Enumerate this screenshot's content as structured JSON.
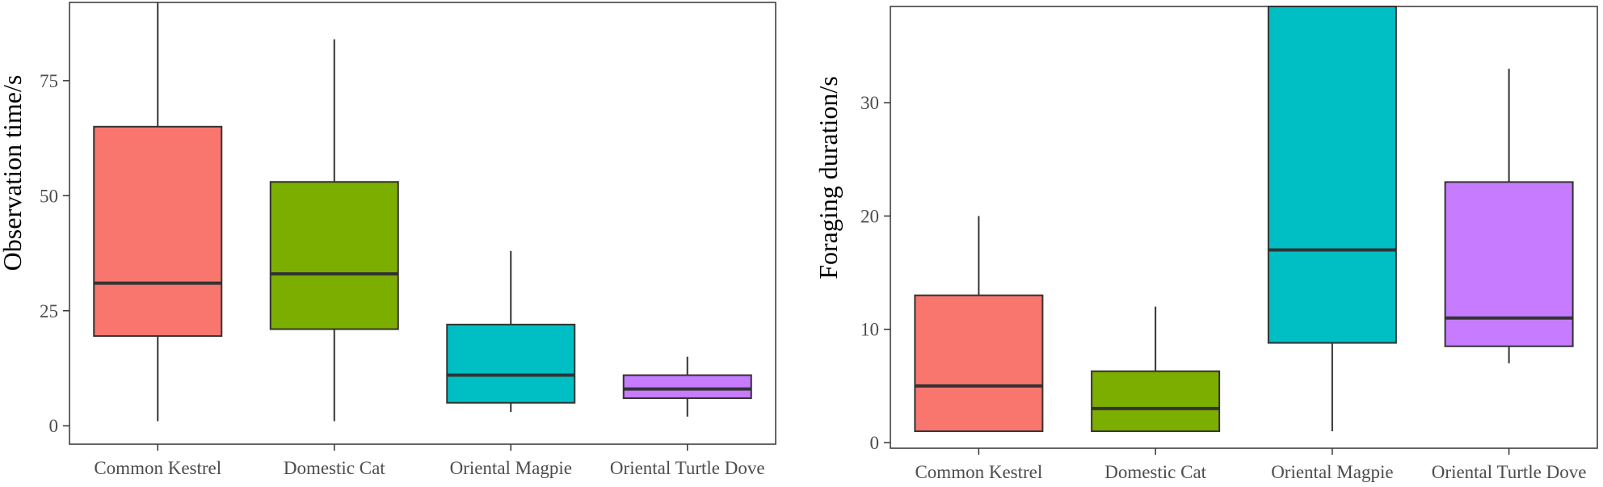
{
  "chart_data": [
    {
      "type": "boxplot",
      "title": "",
      "xlabel": "",
      "ylabel": "Observation time/s",
      "ylim": [
        -4,
        92
      ],
      "yticks": [
        0,
        25,
        50,
        75
      ],
      "grid": false,
      "legend": "none",
      "categories": [
        "Common Kestrel",
        "Domestic Cat",
        "Oriental Magpie",
        "Oriental Turtle Dove"
      ],
      "colors": [
        "#F8766D",
        "#7CAE00",
        "#00BFC4",
        "#C77CFF"
      ],
      "boxes": [
        {
          "whisker_low": 1,
          "q1": 19.5,
          "median": 31,
          "q3": 65,
          "whisker_high": 92
        },
        {
          "whisker_low": 1,
          "q1": 21,
          "median": 33,
          "q3": 53,
          "whisker_high": 84
        },
        {
          "whisker_low": 3,
          "q1": 5,
          "median": 11,
          "q3": 22,
          "whisker_high": 38
        },
        {
          "whisker_low": 2,
          "q1": 6,
          "median": 8,
          "q3": 11,
          "whisker_high": 15
        }
      ]
    },
    {
      "type": "boxplot",
      "title": "",
      "xlabel": "",
      "ylabel": "Foraging duration/s",
      "ylim": [
        -0.5,
        38.5
      ],
      "yticks": [
        0,
        10,
        20,
        30
      ],
      "grid": false,
      "legend": "none",
      "categories": [
        "Common Kestrel",
        "Domestic Cat",
        "Oriental Magpie",
        "Oriental Turtle Dove"
      ],
      "colors": [
        "#F8766D",
        "#7CAE00",
        "#00BFC4",
        "#C77CFF"
      ],
      "boxes": [
        {
          "whisker_low": 1,
          "q1": 1,
          "median": 5,
          "q3": 13,
          "whisker_high": 20
        },
        {
          "whisker_low": 1,
          "q1": 1,
          "median": 3,
          "q3": 6.3,
          "whisker_high": 12
        },
        {
          "whisker_low": 1,
          "q1": 8.8,
          "median": 17,
          "q3": 38.5,
          "whisker_high": 38.5
        },
        {
          "whisker_low": 7,
          "q1": 8.5,
          "median": 11,
          "q3": 23,
          "whisker_high": 33
        }
      ]
    }
  ]
}
